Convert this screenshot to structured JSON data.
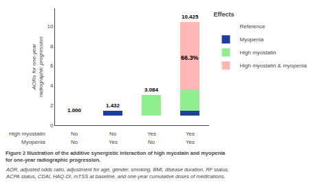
{
  "chart_data": {
    "type": "bar",
    "stacked": true,
    "categories": [
      [
        "No",
        "No"
      ],
      [
        "No",
        "Yes"
      ],
      [
        "Yes",
        "No"
      ],
      [
        "Yes",
        "Yes"
      ]
    ],
    "category_rows": [
      "High myostatin",
      "Myopenia"
    ],
    "series": [
      {
        "name": "Reference",
        "color": "#FFFFFF",
        "values": [
          1.0,
          1.0,
          1.0,
          1.0
        ]
      },
      {
        "name": "Myopenia",
        "color": "#1F3F9F",
        "values": [
          0.0,
          0.432,
          0.0,
          0.432
        ]
      },
      {
        "name": "High myostatin",
        "color": "#90EE90",
        "values": [
          0.0,
          0.0,
          2.084,
          2.084
        ]
      },
      {
        "name": "High myostatin & myopenia",
        "color": "#FFB6B6",
        "values": [
          0.0,
          0.0,
          0.0,
          6.909
        ]
      }
    ],
    "totals": [
      1.0,
      1.432,
      3.084,
      10.425
    ],
    "total_labels": [
      "1.000",
      "1.432",
      "3.084",
      "10.425"
    ],
    "annotations": [
      {
        "text": "66.3%",
        "x": 3,
        "y": 6.8
      }
    ],
    "ylabel": "AORs for one-year\nradiographic progression",
    "ylim": [
      0,
      11.8
    ],
    "yticks": [
      0,
      2,
      4,
      6,
      8,
      10
    ],
    "grid": false,
    "legend": "right",
    "legend_title": "Effects",
    "caption": [
      "Figure 2 Illustration of the additive synergistic interaction of high myostain and myopenia\nfor one-year radiographic progression.",
      "AOR, adjusted odds ratio, adjustment for age, gender, smoking, BMI, disease duration, RF status,\nACPA status, CDAI, HAQ-DI, mTSS at baseline, and one-year cumulative doses of medications."
    ]
  }
}
